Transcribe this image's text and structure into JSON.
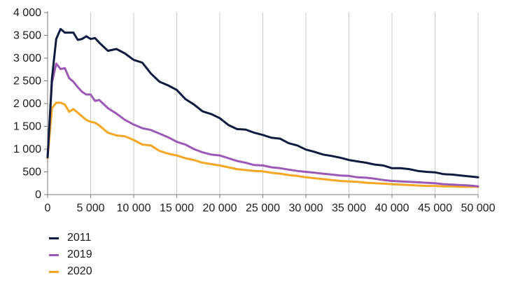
{
  "chart_data": {
    "type": "line",
    "title": "",
    "xlabel": "",
    "ylabel": "",
    "xlim": [
      0,
      50000
    ],
    "ylim": [
      0,
      4000
    ],
    "x_ticks": [
      0,
      5000,
      10000,
      15000,
      20000,
      25000,
      30000,
      35000,
      40000,
      45000,
      50000
    ],
    "x_tick_labels": [
      "0",
      "5 000",
      "10 000",
      "15 000",
      "20 000",
      "25 000",
      "30 000",
      "35 000",
      "40 000",
      "45 000",
      "50 000"
    ],
    "y_ticks": [
      0,
      500,
      1000,
      1500,
      2000,
      2500,
      3000,
      3500,
      4000
    ],
    "y_tick_labels": [
      "0",
      "500",
      "1 000",
      "1 500",
      "2 000",
      "2 500",
      "3 000",
      "3 500",
      "4 000"
    ],
    "grid": "vertical",
    "legend_position": "bottom-left",
    "x": [
      0,
      500,
      1000,
      1500,
      2000,
      2500,
      3000,
      3500,
      4000,
      4500,
      5000,
      5500,
      6000,
      7000,
      8000,
      9000,
      10000,
      11000,
      12000,
      13000,
      14000,
      15000,
      16000,
      17000,
      18000,
      19000,
      20000,
      21000,
      22000,
      23000,
      24000,
      25000,
      26000,
      27000,
      28000,
      29000,
      30000,
      31000,
      32000,
      33000,
      34000,
      35000,
      36000,
      37000,
      38000,
      39000,
      40000,
      41000,
      42000,
      43000,
      44000,
      45000,
      46000,
      47000,
      48000,
      49000,
      50000
    ],
    "series": [
      {
        "name": "2011",
        "color": "#0d1b3e",
        "values": [
          820,
          2550,
          3420,
          3640,
          3560,
          3560,
          3560,
          3400,
          3420,
          3480,
          3420,
          3440,
          3340,
          3160,
          3200,
          3100,
          2960,
          2900,
          2660,
          2480,
          2400,
          2300,
          2100,
          1980,
          1830,
          1770,
          1680,
          1530,
          1440,
          1430,
          1360,
          1310,
          1250,
          1230,
          1130,
          1080,
          990,
          940,
          880,
          850,
          810,
          760,
          730,
          700,
          660,
          640,
          580,
          580,
          560,
          520,
          500,
          490,
          450,
          440,
          420,
          400,
          380
        ]
      },
      {
        "name": "2019",
        "color": "#9b59b6",
        "values": [
          820,
          2460,
          2880,
          2760,
          2780,
          2560,
          2480,
          2360,
          2260,
          2200,
          2200,
          2060,
          2080,
          1900,
          1780,
          1640,
          1540,
          1460,
          1420,
          1340,
          1260,
          1160,
          1100,
          1000,
          930,
          880,
          860,
          800,
          740,
          700,
          650,
          640,
          600,
          580,
          550,
          520,
          500,
          480,
          460,
          440,
          420,
          410,
          380,
          370,
          350,
          320,
          300,
          290,
          280,
          270,
          260,
          250,
          230,
          220,
          210,
          200,
          180
        ]
      },
      {
        "name": "2020",
        "color": "#f5a623",
        "values": [
          800,
          1900,
          2020,
          2020,
          1980,
          1820,
          1880,
          1800,
          1720,
          1640,
          1600,
          1580,
          1520,
          1360,
          1300,
          1280,
          1200,
          1100,
          1080,
          960,
          900,
          860,
          800,
          760,
          700,
          670,
          640,
          600,
          560,
          540,
          520,
          510,
          480,
          460,
          430,
          410,
          380,
          360,
          340,
          320,
          300,
          290,
          280,
          260,
          250,
          240,
          230,
          220,
          210,
          200,
          190,
          190,
          180,
          180,
          170,
          170,
          170
        ]
      }
    ]
  }
}
